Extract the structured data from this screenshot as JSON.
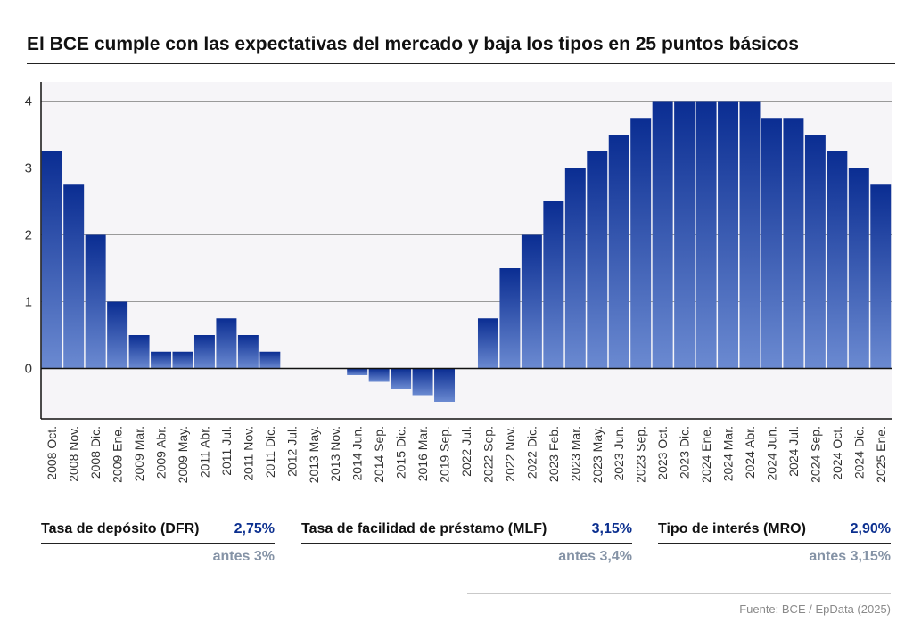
{
  "title": "El BCE cumple con las expectativas del mercado y baja los tipos en 25 puntos básicos",
  "source": "Fuente: BCE / EpData (2025)",
  "rates": [
    {
      "label": "Tasa de depósito (DFR)",
      "value": "2,75%",
      "previous": "antes 3%"
    },
    {
      "label": "Tasa de facilidad de préstamo (MLF)",
      "value": "3,15%",
      "previous": "antes 3,4%"
    },
    {
      "label": "Tipo de interés (MRO)",
      "value": "2,90%",
      "previous": "antes 3,15%"
    }
  ],
  "colors": {
    "bar_top": "#0a2d92",
    "bar_bottom": "#6b8ad1",
    "plot_background": "#f6f5f8",
    "accent_value": "#0b2f8f"
  },
  "chart_data": {
    "type": "bar",
    "title": "El BCE cumple con las expectativas del mercado y baja los tipos en 25 puntos básicos",
    "xlabel": "",
    "ylabel": "",
    "ylim": [
      -0.75,
      4.3
    ],
    "yticks": [
      0,
      1,
      2,
      3,
      4
    ],
    "grid": true,
    "categories": [
      "2008 Oct.",
      "2008 Nov.",
      "2008 Dic.",
      "2009 Ene.",
      "2009 Mar.",
      "2009 Abr.",
      "2009 May.",
      "2011 Abr.",
      "2011 Jul.",
      "2011 Nov.",
      "2011 Dic.",
      "2012 Jul.",
      "2013 May.",
      "2013 Nov.",
      "2014 Jun.",
      "2014 Sep.",
      "2015 Dic.",
      "2016 Mar.",
      "2019 Sep.",
      "2022 Jul.",
      "2022 Sep.",
      "2022 Nov.",
      "2022 Dic.",
      "2023 Feb.",
      "2023 Mar.",
      "2023 May.",
      "2023 Jun.",
      "2023 Sep.",
      "2023 Oct.",
      "2023 Dic.",
      "2024 Ene.",
      "2024 Mar.",
      "2024 Abr.",
      "2024 Jun.",
      "2024 Jul.",
      "2024 Sep.",
      "2024 Oct.",
      "2024 Dic.",
      "2025 Ene."
    ],
    "values": [
      3.25,
      2.75,
      2.0,
      1.0,
      0.5,
      0.25,
      0.25,
      0.5,
      0.75,
      0.5,
      0.25,
      0.0,
      0.0,
      0.0,
      -0.1,
      -0.2,
      -0.3,
      -0.4,
      -0.5,
      0.0,
      0.75,
      1.5,
      2.0,
      2.5,
      3.0,
      3.25,
      3.5,
      3.75,
      4.0,
      4.0,
      4.0,
      4.0,
      4.0,
      3.75,
      3.75,
      3.5,
      3.25,
      3.0,
      2.75
    ]
  }
}
